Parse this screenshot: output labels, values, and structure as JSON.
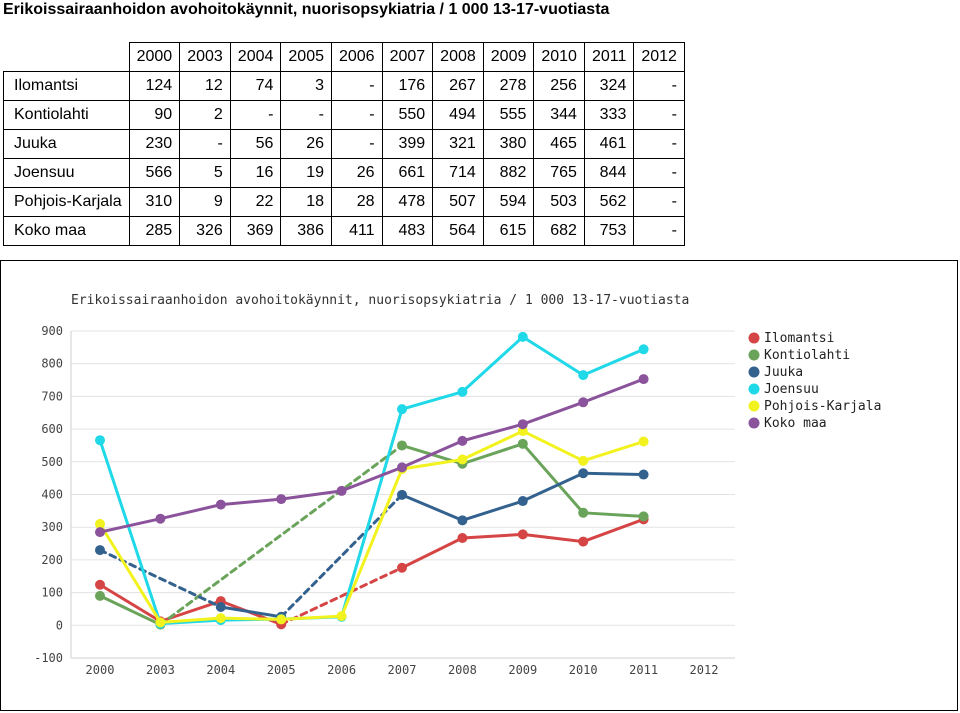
{
  "page": {
    "title": "Erikoissairaanhoidon avohoitokäynnit, nuorisopsykiatria / 1 000 13-17-vuotiasta"
  },
  "table": {
    "columns": [
      "2000",
      "2003",
      "2004",
      "2005",
      "2006",
      "2007",
      "2008",
      "2009",
      "2010",
      "2011",
      "2012"
    ],
    "rows": [
      {
        "label": "Ilomantsi",
        "cells": [
          "124",
          "12",
          "74",
          "3",
          "-",
          "176",
          "267",
          "278",
          "256",
          "324",
          "-"
        ]
      },
      {
        "label": "Kontiolahti",
        "cells": [
          "90",
          "2",
          "-",
          "-",
          "-",
          "550",
          "494",
          "555",
          "344",
          "333",
          "-"
        ]
      },
      {
        "label": "Juuka",
        "cells": [
          "230",
          "-",
          "56",
          "26",
          "-",
          "399",
          "321",
          "380",
          "465",
          "461",
          "-"
        ]
      },
      {
        "label": "Joensuu",
        "cells": [
          "566",
          "5",
          "16",
          "19",
          "26",
          "661",
          "714",
          "882",
          "765",
          "844",
          "-"
        ]
      },
      {
        "label": "Pohjois-Karjala",
        "cells": [
          "310",
          "9",
          "22",
          "18",
          "28",
          "478",
          "507",
          "594",
          "503",
          "562",
          "-"
        ]
      },
      {
        "label": "Koko maa",
        "cells": [
          "285",
          "326",
          "369",
          "386",
          "411",
          "483",
          "564",
          "615",
          "682",
          "753",
          "-"
        ]
      }
    ]
  },
  "chart_data": {
    "type": "line",
    "title": "Erikoissairaanhoidon avohoitokäynnit, nuorisopsykiatria / 1 000 13-17-vuotiasta",
    "categories": [
      "2000",
      "2003",
      "2004",
      "2005",
      "2006",
      "2007",
      "2008",
      "2009",
      "2010",
      "2011",
      "2012"
    ],
    "ylim": [
      -100,
      900
    ],
    "yticks": [
      -100,
      0,
      100,
      200,
      300,
      400,
      500,
      600,
      700,
      800,
      900
    ],
    "grid": true,
    "legend_position": "right",
    "series": [
      {
        "name": "Ilomantsi",
        "color": "#d64545",
        "values": [
          124,
          12,
          74,
          3,
          null,
          176,
          267,
          278,
          256,
          324,
          null
        ]
      },
      {
        "name": "Kontiolahti",
        "color": "#6aa35a",
        "values": [
          90,
          2,
          null,
          null,
          null,
          550,
          494,
          555,
          344,
          333,
          null
        ]
      },
      {
        "name": "Juuka",
        "color": "#34628f",
        "values": [
          230,
          null,
          56,
          26,
          null,
          399,
          321,
          380,
          465,
          461,
          null
        ]
      },
      {
        "name": "Joensuu",
        "color": "#1fd8e8",
        "values": [
          566,
          5,
          16,
          19,
          26,
          661,
          714,
          882,
          765,
          844,
          null
        ]
      },
      {
        "name": "Pohjois-Karjala",
        "color": "#f2f21e",
        "values": [
          310,
          9,
          22,
          18,
          28,
          478,
          507,
          594,
          503,
          562,
          null
        ]
      },
      {
        "name": "Koko maa",
        "color": "#8b539b",
        "values": [
          285,
          326,
          369,
          386,
          411,
          483,
          564,
          615,
          682,
          753,
          null
        ]
      }
    ]
  }
}
